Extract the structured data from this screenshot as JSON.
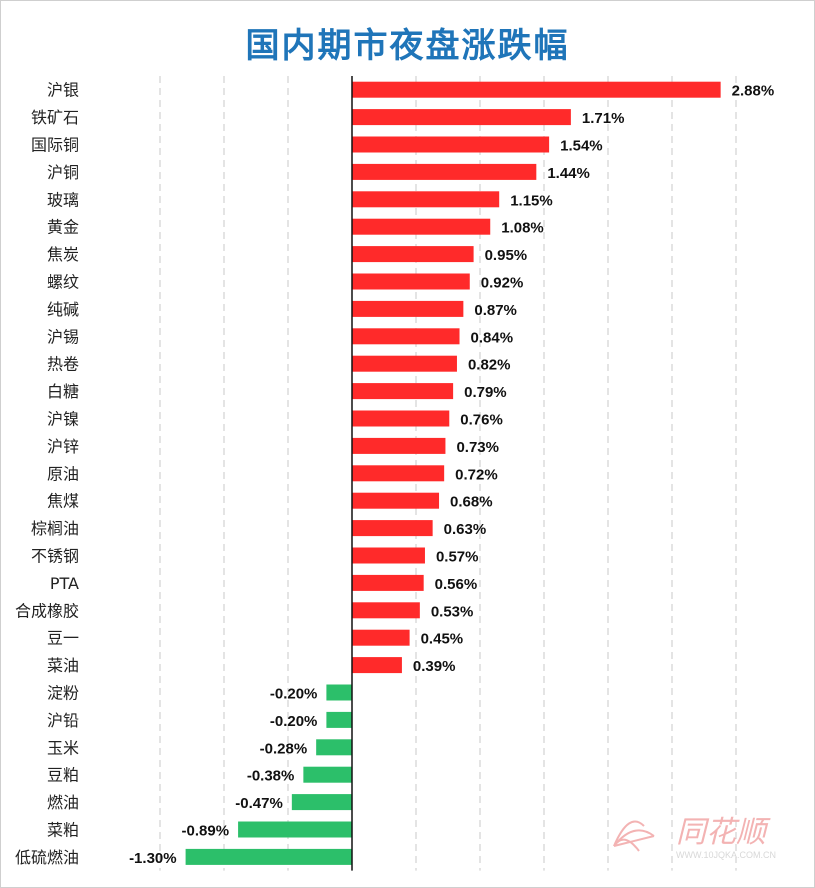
{
  "chart_data": {
    "type": "bar",
    "orientation": "horizontal",
    "title": "国内期市夜盘涨跌幅",
    "categories": [
      "沪银",
      "铁矿石",
      "国际铜",
      "沪铜",
      "玻璃",
      "黄金",
      "焦炭",
      "螺纹",
      "纯碱",
      "沪锡",
      "热卷",
      "白糖",
      "沪镍",
      "沪锌",
      "原油",
      "焦煤",
      "棕榈油",
      "不锈钢",
      "PTA",
      "合成橡胶",
      "豆一",
      "菜油",
      "淀粉",
      "沪铅",
      "玉米",
      "豆粕",
      "燃油",
      "菜粕",
      "低硫燃油"
    ],
    "values": [
      2.88,
      1.71,
      1.54,
      1.44,
      1.15,
      1.08,
      0.95,
      0.92,
      0.87,
      0.84,
      0.82,
      0.79,
      0.76,
      0.73,
      0.72,
      0.68,
      0.63,
      0.57,
      0.56,
      0.53,
      0.45,
      0.39,
      -0.2,
      -0.2,
      -0.28,
      -0.38,
      -0.47,
      -0.89,
      -1.3
    ],
    "value_labels": [
      "2.88%",
      "1.71%",
      "1.54%",
      "1.44%",
      "1.15%",
      "1.08%",
      "0.95%",
      "0.92%",
      "0.87%",
      "0.84%",
      "0.82%",
      "0.79%",
      "0.76%",
      "0.73%",
      "0.72%",
      "0.68%",
      "0.63%",
      "0.57%",
      "0.56%",
      "0.53%",
      "0.45%",
      "0.39%",
      "-0.20%",
      "-0.20%",
      "-0.28%",
      "-0.38%",
      "-0.47%",
      "-0.89%",
      "-1.30%"
    ],
    "xlim": [
      -1.75,
      3.5
    ],
    "grid": true,
    "colors": {
      "positive": "#ff2a2a",
      "negative": "#2cbf6a"
    }
  },
  "watermark": {
    "text": "同花顺",
    "url": "WWW.10JQKA.COM.CN"
  }
}
